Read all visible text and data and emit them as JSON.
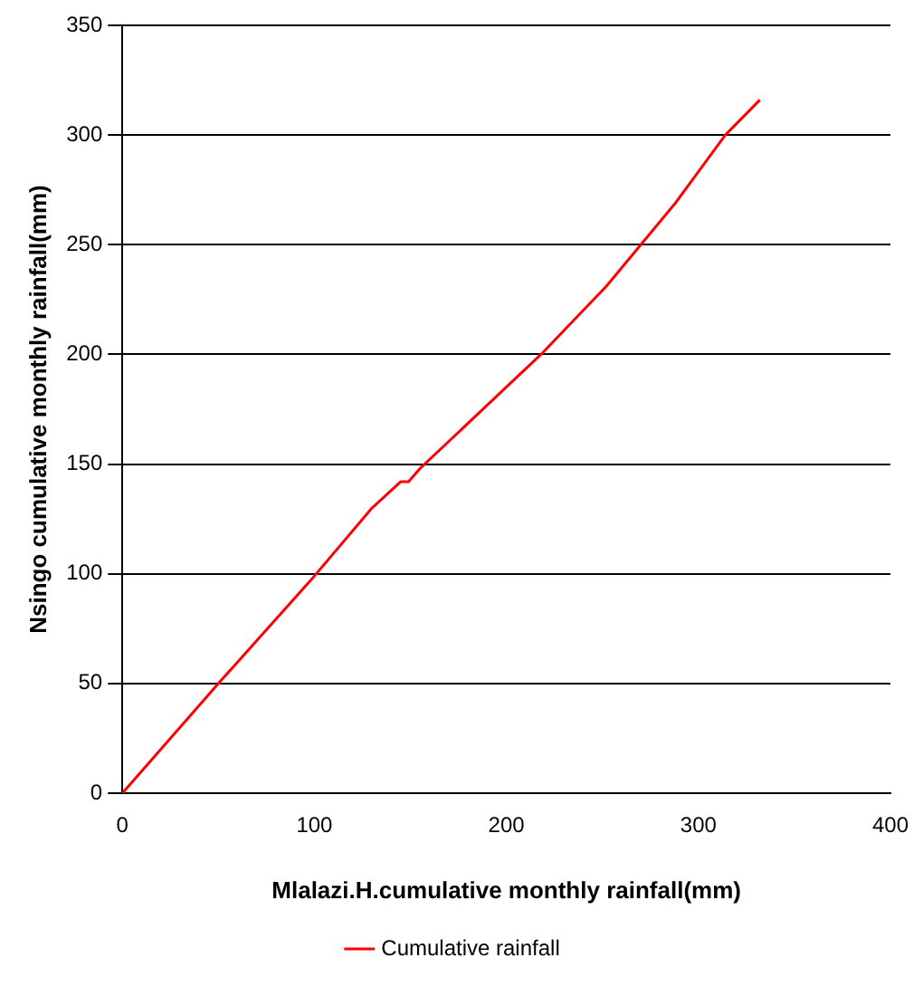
{
  "chart_data": {
    "type": "line",
    "xlabel": "Mlalazi.H.cumulative monthly rainfall(mm)",
    "ylabel": "Nsingo cumulative monthly rainfall(mm)",
    "x": [
      0,
      50,
      100,
      130,
      145,
      149,
      155,
      218,
      252,
      288,
      314,
      332
    ],
    "series": [
      {
        "name": "Cumulative rainfall",
        "color": "#ff0000",
        "values": [
          0,
          50,
          99,
          130,
          142,
          142,
          148,
          200,
          231,
          269,
          300,
          316
        ]
      }
    ],
    "xlim": [
      0,
      400
    ],
    "xticks": [
      0,
      100,
      200,
      300,
      400
    ],
    "ylim": [
      0,
      350
    ],
    "yticks": [
      0,
      50,
      100,
      150,
      200,
      250,
      300,
      350
    ],
    "grid": "y",
    "legend": "bottom",
    "marker": "none",
    "line_style": "solid"
  }
}
